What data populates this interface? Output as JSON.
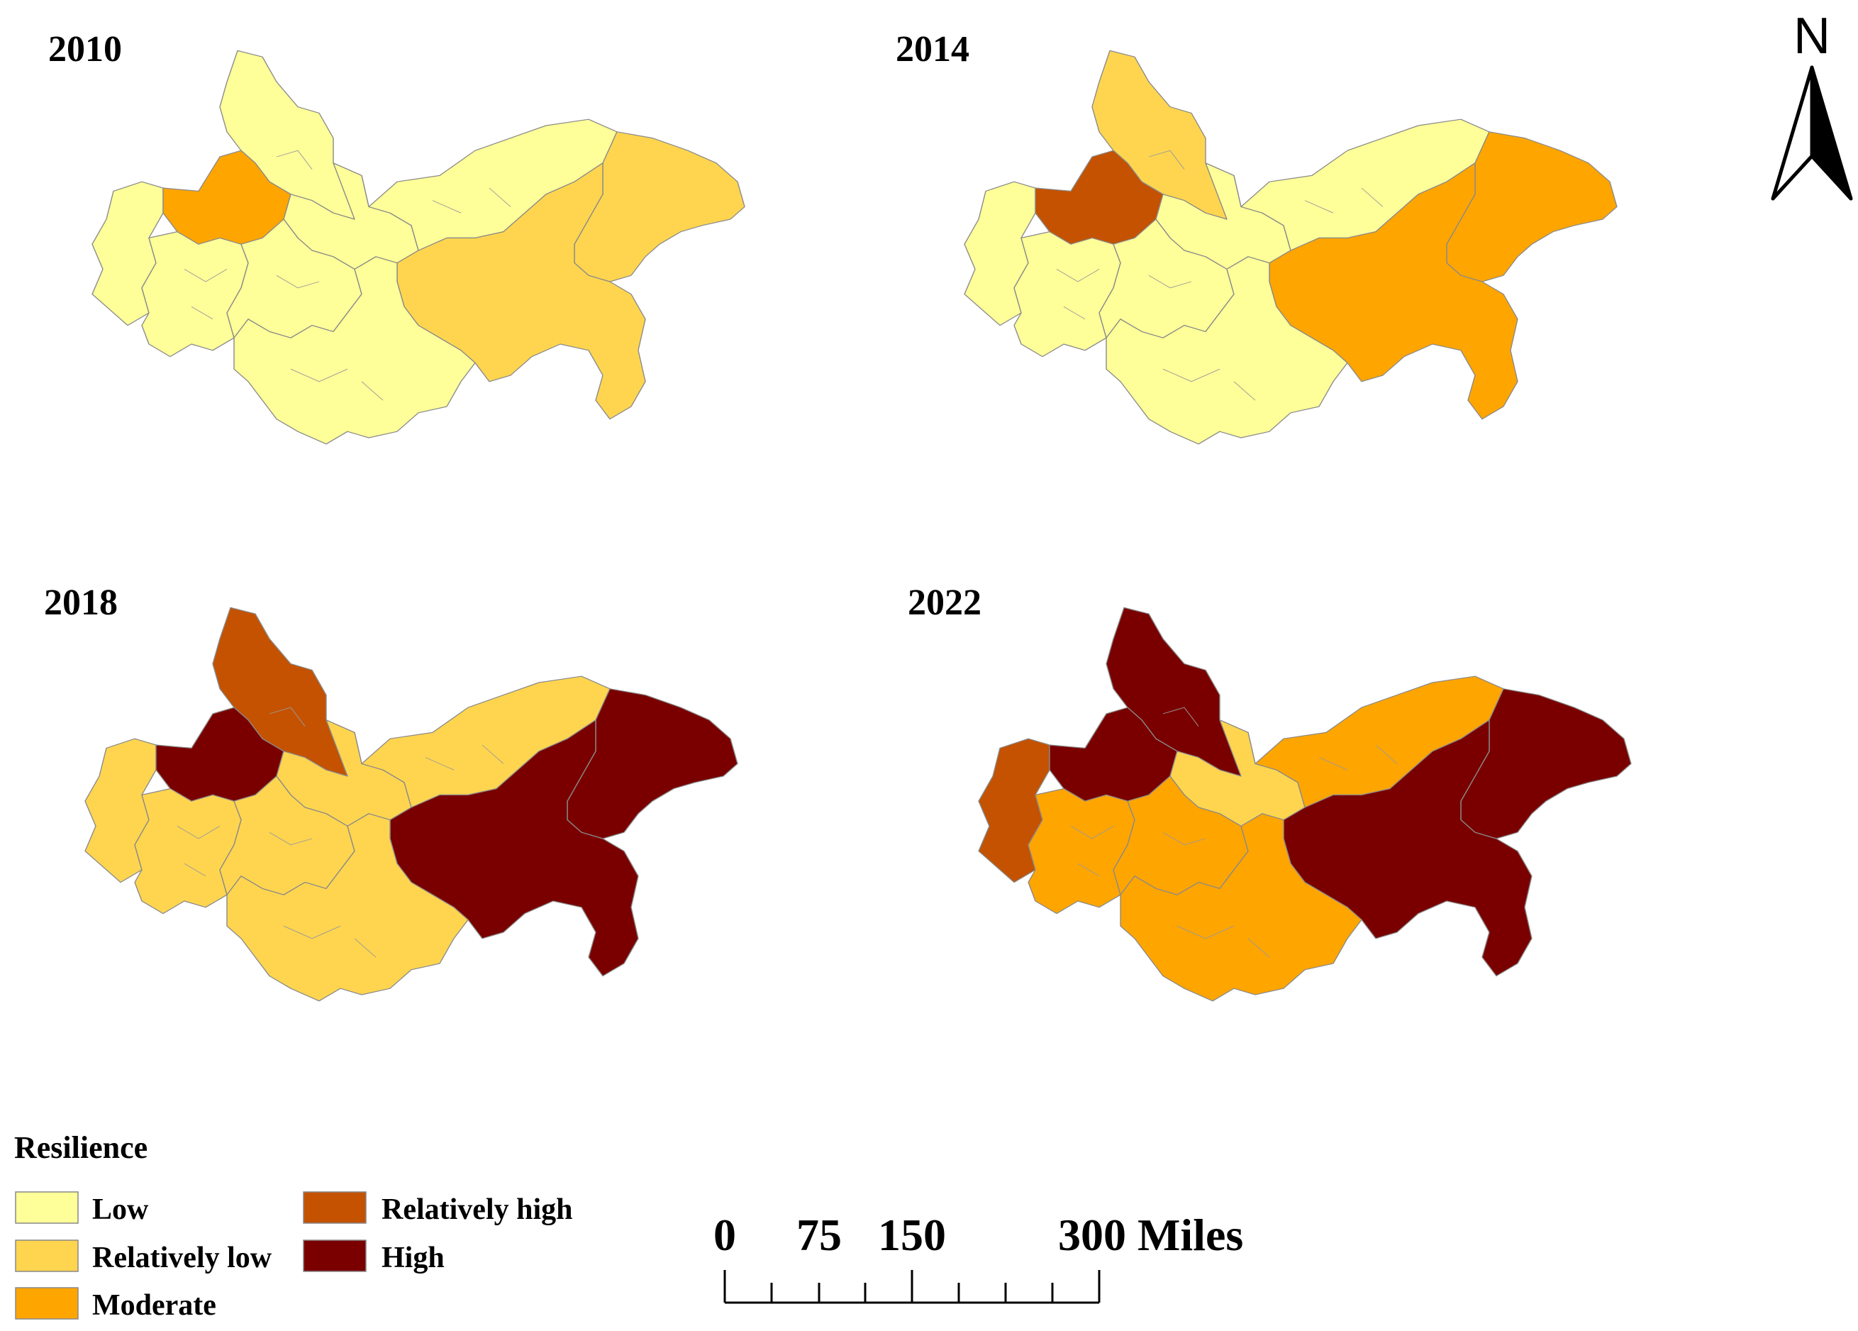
{
  "maps": [
    {
      "year": "2010"
    },
    {
      "year": "2014"
    },
    {
      "year": "2018"
    },
    {
      "year": "2022"
    }
  ],
  "north_label": "N",
  "legend": {
    "title": "Resilience",
    "classes": [
      {
        "label": "Low",
        "color": "#ffff99"
      },
      {
        "label": "Relatively low",
        "color": "#ffd54f"
      },
      {
        "label": "Moderate",
        "color": "#ffa500"
      },
      {
        "label": "Relatively high",
        "color": "#c45200"
      },
      {
        "label": "High",
        "color": "#7a0000"
      }
    ]
  },
  "scale_bar": {
    "ticks": [
      "0",
      "75",
      "150",
      "300 Miles"
    ]
  },
  "region_levels": {
    "2010": {
      "north": 0,
      "west": 0,
      "chengdu": 2,
      "southwest": 0,
      "center": 0,
      "middle": 0,
      "northeast": 0,
      "east": 1,
      "southeast": 1,
      "south": 0
    },
    "2014": {
      "north": 1,
      "west": 0,
      "chengdu": 3,
      "southwest": 0,
      "center": 0,
      "middle": 0,
      "northeast": 0,
      "east": 2,
      "southeast": 2,
      "south": 0
    },
    "2018": {
      "north": 3,
      "west": 1,
      "chengdu": 4,
      "southwest": 1,
      "center": 1,
      "middle": 1,
      "northeast": 1,
      "east": 4,
      "southeast": 4,
      "south": 1
    },
    "2022": {
      "north": 4,
      "west": 3,
      "chengdu": 4,
      "southwest": 2,
      "center": 1,
      "middle": 2,
      "northeast": 2,
      "east": 4,
      "southeast": 4,
      "south": 2
    }
  }
}
